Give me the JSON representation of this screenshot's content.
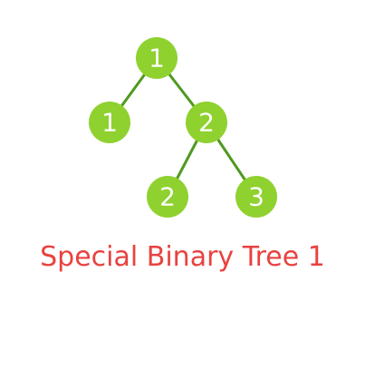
{
  "title": "Special Binary Tree 1",
  "colors": {
    "node_fill": "#8fd12f",
    "edge": "#4f9a1f",
    "node_label": "#ffffff",
    "title": "#e8423f"
  },
  "tree": {
    "nodes": [
      {
        "id": "root",
        "label": "1"
      },
      {
        "id": "left-child",
        "label": "1"
      },
      {
        "id": "right-child",
        "label": "2"
      },
      {
        "id": "right-left-child",
        "label": "2"
      },
      {
        "id": "right-right-child",
        "label": "3"
      }
    ],
    "edges": [
      {
        "from": "root",
        "to": "left-child"
      },
      {
        "from": "root",
        "to": "right-child"
      },
      {
        "from": "right-child",
        "to": "right-left-child"
      },
      {
        "from": "right-child",
        "to": "right-right-child"
      }
    ]
  }
}
